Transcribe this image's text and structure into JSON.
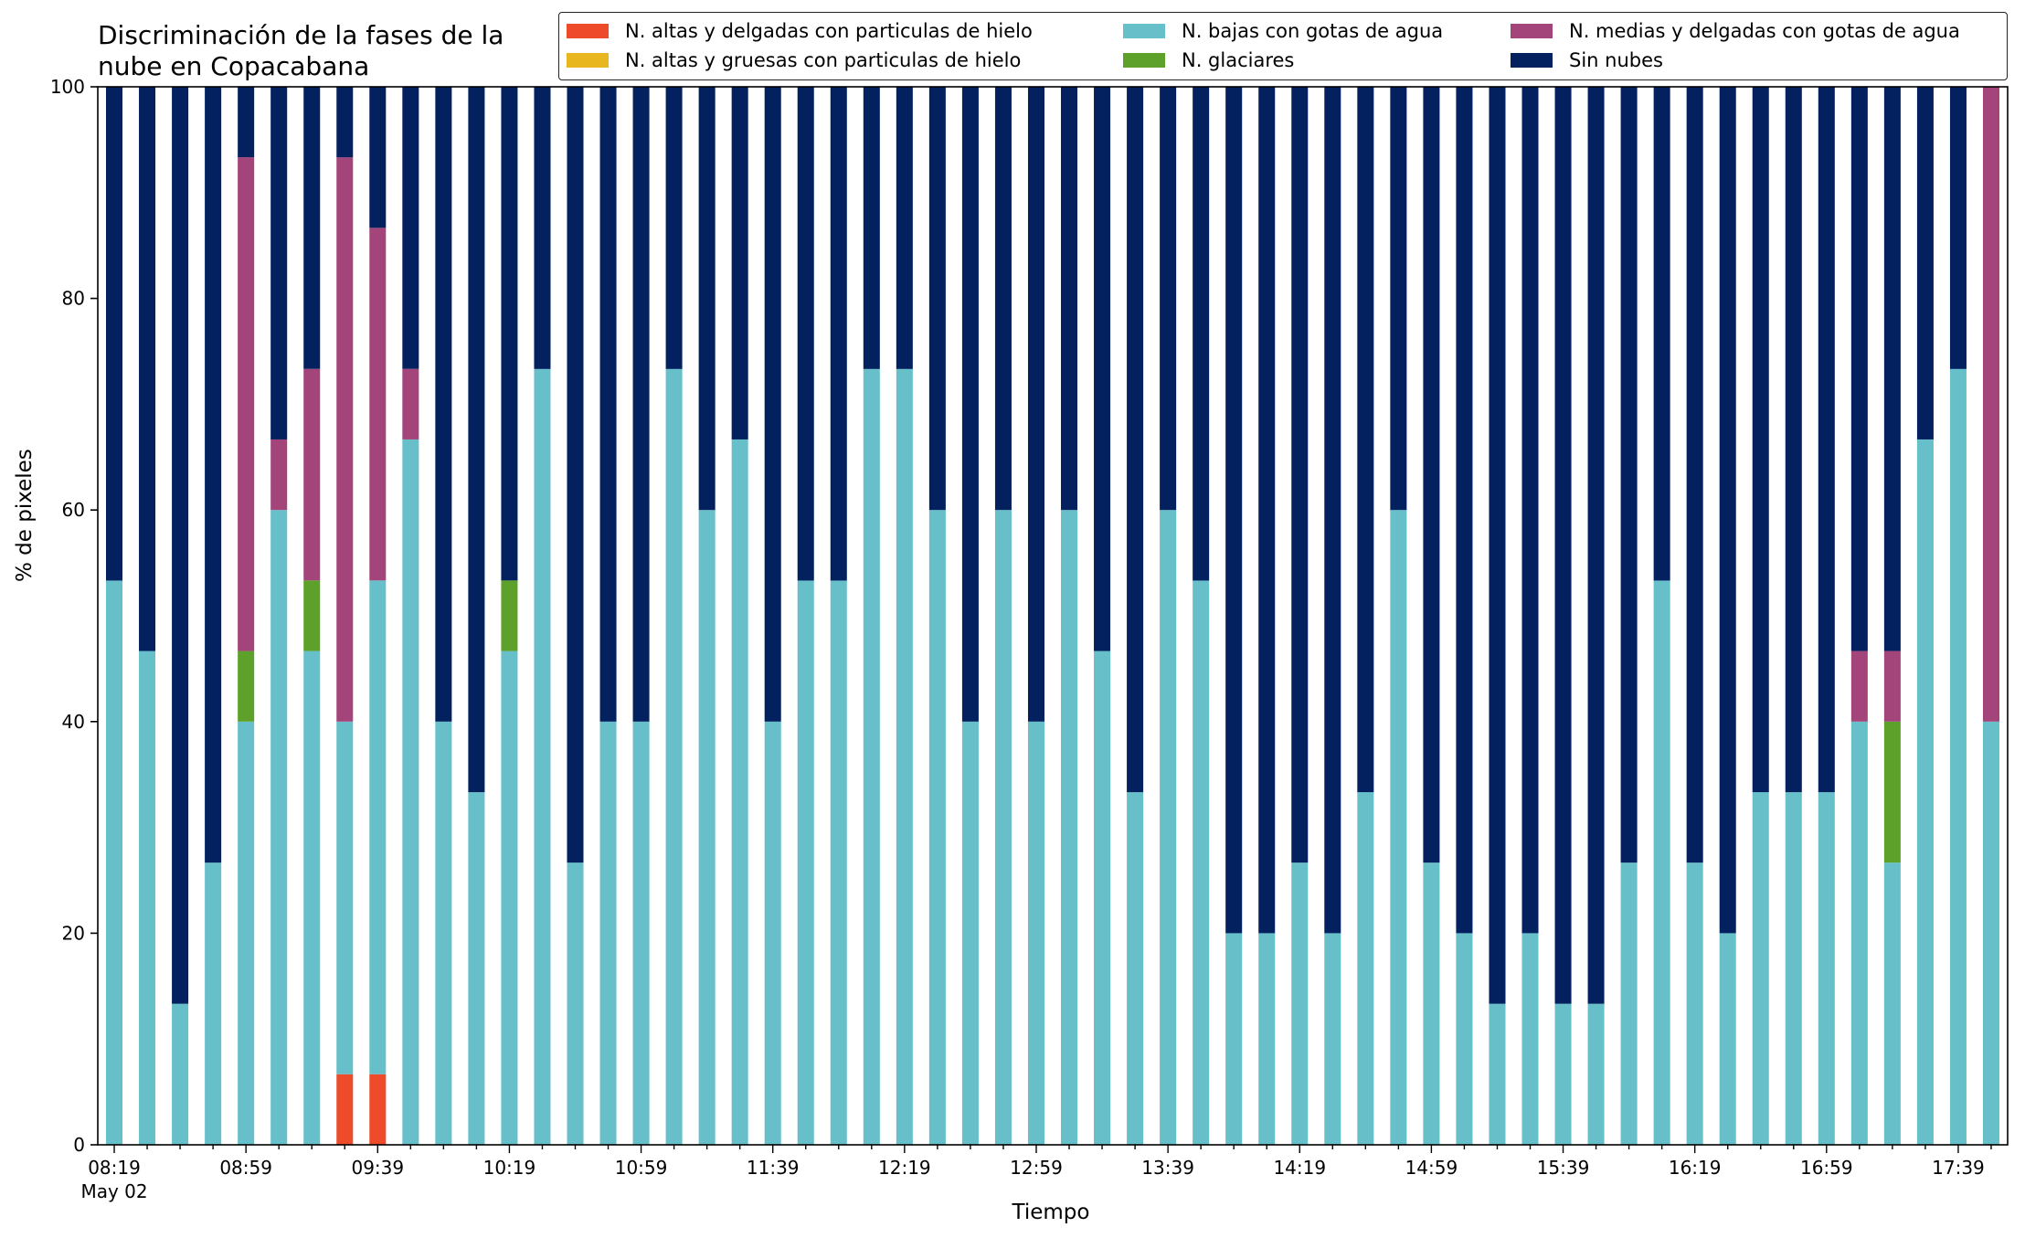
{
  "chart_data": {
    "type": "bar",
    "stacked": true,
    "title": "Discriminación de la fases de la\nnube en Copacabana",
    "xlabel": "Tiempo",
    "ylabel": "% de pixeles",
    "ylim": [
      0,
      100
    ],
    "yticks": [
      0,
      20,
      40,
      60,
      80,
      100
    ],
    "xtick_labels": [
      "08:19",
      "08:59",
      "09:39",
      "10:19",
      "10:59",
      "11:39",
      "12:19",
      "12:59",
      "13:39",
      "14:19",
      "14:59",
      "15:39",
      "16:19",
      "16:59",
      "17:39"
    ],
    "xtick_sublabel": "May 02",
    "bar_count": 58,
    "legend_position": "top",
    "legend_columns": [
      [
        "N. altas y delgadas con particulas de hielo",
        "N. altas y gruesas con particulas de hielo"
      ],
      [
        "N. bajas con gotas de agua",
        "N. glaciares"
      ],
      [
        "N. medias y delgadas con gotas de agua",
        "Sin nubes"
      ]
    ],
    "series": [
      {
        "name": "N. altas y delgadas con particulas de hielo",
        "color": "#ee4b2b",
        "values": [
          0,
          0,
          0,
          0,
          0,
          0,
          0,
          6.67,
          6.67,
          0,
          0,
          0,
          0,
          0,
          0,
          0,
          0,
          0,
          0,
          0,
          0,
          0,
          0,
          0,
          0,
          0,
          0,
          0,
          0,
          0,
          0,
          0,
          0,
          0,
          0,
          0,
          0,
          0,
          0,
          0,
          0,
          0,
          0,
          0,
          0,
          0,
          0,
          0,
          0,
          0,
          0,
          0,
          0,
          0,
          0,
          0,
          0,
          0
        ]
      },
      {
        "name": "N. altas y gruesas con particulas de hielo",
        "color": "#e8b71f",
        "values": [
          0,
          0,
          0,
          0,
          0,
          0,
          0,
          0,
          0,
          0,
          0,
          0,
          0,
          0,
          0,
          0,
          0,
          0,
          0,
          0,
          0,
          0,
          0,
          0,
          0,
          0,
          0,
          0,
          0,
          0,
          0,
          0,
          0,
          0,
          0,
          0,
          0,
          0,
          0,
          0,
          0,
          0,
          0,
          0,
          0,
          0,
          0,
          0,
          0,
          0,
          0,
          0,
          0,
          0,
          0,
          0,
          0,
          0
        ]
      },
      {
        "name": "N. bajas con gotas de agua",
        "color": "#67bfca",
        "values": [
          53.33,
          46.67,
          13.33,
          26.67,
          40,
          60,
          46.67,
          33.33,
          46.67,
          66.67,
          40,
          33.33,
          46.67,
          73.33,
          26.67,
          40,
          40,
          73.33,
          60,
          66.67,
          40,
          53.33,
          53.33,
          73.33,
          73.33,
          60,
          40,
          60,
          40,
          60,
          46.67,
          33.33,
          60,
          53.33,
          20,
          20,
          26.67,
          20,
          33.33,
          60,
          26.67,
          20,
          13.33,
          20,
          13.33,
          13.33,
          26.67,
          53.33,
          26.67,
          20,
          33.33,
          33.33,
          33.33,
          40,
          26.67,
          66.67,
          73.33,
          40
        ]
      },
      {
        "name": "N. glaciares",
        "color": "#5ea12a",
        "values": [
          0,
          0,
          0,
          0,
          6.67,
          0,
          6.67,
          0,
          0,
          0,
          0,
          0,
          6.67,
          0,
          0,
          0,
          0,
          0,
          0,
          0,
          0,
          0,
          0,
          0,
          0,
          0,
          0,
          0,
          0,
          0,
          0,
          0,
          0,
          0,
          0,
          0,
          0,
          0,
          0,
          0,
          0,
          0,
          0,
          0,
          0,
          0,
          0,
          0,
          0,
          0,
          0,
          0,
          0,
          0,
          13.33,
          0,
          0,
          0
        ]
      },
      {
        "name": "N. medias y delgadas con gotas de agua",
        "color": "#a3457a",
        "values": [
          0,
          0,
          0,
          0,
          46.67,
          6.67,
          20,
          53.33,
          33.33,
          6.67,
          0,
          0,
          0,
          0,
          0,
          0,
          0,
          0,
          0,
          0,
          0,
          0,
          0,
          0,
          0,
          0,
          0,
          0,
          0,
          0,
          0,
          0,
          0,
          0,
          0,
          0,
          0,
          0,
          0,
          0,
          0,
          0,
          0,
          0,
          0,
          0,
          0,
          0,
          0,
          0,
          0,
          0,
          0,
          6.67,
          6.67,
          0,
          0,
          60
        ]
      },
      {
        "name": "Sin nubes",
        "color": "#03205f",
        "values": [
          46.67,
          53.33,
          86.67,
          73.33,
          6.67,
          33.33,
          26.67,
          6.67,
          13.33,
          26.67,
          60,
          66.67,
          46.67,
          26.67,
          73.33,
          60,
          60,
          26.67,
          40,
          33.33,
          60,
          46.67,
          46.67,
          26.67,
          26.67,
          40,
          60,
          40,
          60,
          40,
          53.33,
          66.67,
          40,
          46.67,
          80,
          80,
          73.33,
          80,
          66.67,
          40,
          73.33,
          80,
          86.67,
          80,
          86.67,
          86.67,
          73.33,
          46.67,
          73.33,
          80,
          66.67,
          66.67,
          66.67,
          53.33,
          53.33,
          33.33,
          26.67,
          0
        ]
      }
    ]
  }
}
